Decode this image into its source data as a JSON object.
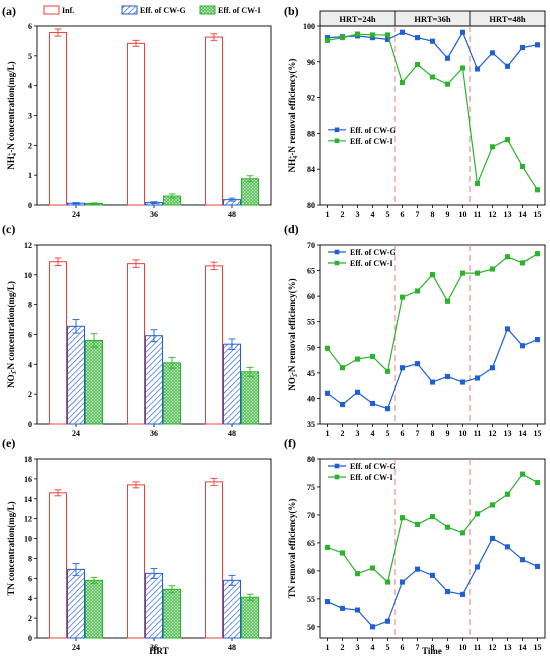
{
  "figure": {
    "bottom_xlabels": {
      "left": "HRT",
      "right": "Time"
    },
    "colors": {
      "inf": "#e8413a",
      "cwg": "#1f5fd6",
      "cwi": "#2bb32b",
      "marker_g": "#1f5fd6",
      "marker_i": "#2bb32b",
      "hrt_band": "#ededed",
      "divider": "#f08080"
    }
  },
  "chart_data": [
    {
      "id": "a",
      "type": "bar",
      "panel_label": "(a)",
      "categories": [
        "24",
        "36",
        "48"
      ],
      "ylabel": "NH4+-N concentration(mg/L)",
      "ylabel_parts": [
        "NH",
        "4",
        "+",
        "-N concentration(mg/L)"
      ],
      "ylim": [
        0,
        6
      ],
      "yticks": [
        0,
        1,
        2,
        3,
        4,
        5,
        6
      ],
      "legend_position": "top",
      "series": [
        {
          "name": "Inf.",
          "values": [
            5.78,
            5.42,
            5.63
          ],
          "errors": [
            0.12,
            0.1,
            0.11
          ]
        },
        {
          "name": "Eff. of CW-G",
          "values": [
            0.06,
            0.08,
            0.18
          ],
          "errors": [
            0.02,
            0.03,
            0.05
          ]
        },
        {
          "name": "Eff. of CW-I",
          "values": [
            0.05,
            0.3,
            0.88
          ],
          "errors": [
            0.02,
            0.07,
            0.1
          ]
        }
      ]
    },
    {
      "id": "b",
      "type": "line",
      "panel_label": "(b)",
      "x": [
        1,
        2,
        3,
        4,
        5,
        6,
        7,
        8,
        9,
        10,
        11,
        12,
        13,
        14,
        15
      ],
      "ylabel": "NH4+-N removal efficiency(%)",
      "ylabel_parts": [
        "NH",
        "4",
        "+",
        "-N removal efficiency(%)"
      ],
      "ylim": [
        80,
        100
      ],
      "yticks": [
        80,
        84,
        88,
        92,
        96,
        100
      ],
      "hrt_labels": [
        "HRT=24h",
        "HRT=36h",
        "HRT=48h"
      ],
      "legend_position": "bottom-left",
      "series": [
        {
          "name": "Eff. of CW-G",
          "values": [
            98.7,
            98.8,
            98.9,
            98.7,
            98.5,
            99.3,
            98.7,
            98.3,
            96.4,
            99.3,
            95.2,
            97.0,
            95.5,
            97.6,
            97.9
          ]
        },
        {
          "name": "Eff. of CW-I",
          "values": [
            98.4,
            98.7,
            99.1,
            99.0,
            99.0,
            93.7,
            95.7,
            94.3,
            93.5,
            95.3,
            82.4,
            86.5,
            87.3,
            84.3,
            81.7
          ]
        }
      ]
    },
    {
      "id": "c",
      "type": "bar",
      "panel_label": "(c)",
      "categories": [
        "24",
        "36",
        "48"
      ],
      "ylabel": "NO3--N concentration(mg/L)",
      "ylabel_parts": [
        "NO",
        "3",
        "-",
        "-N concentration(mg/L)"
      ],
      "ylim": [
        0,
        12
      ],
      "yticks": [
        0,
        2,
        4,
        6,
        8,
        10,
        12
      ],
      "series": [
        {
          "name": "Inf.",
          "values": [
            10.88,
            10.75,
            10.6
          ],
          "errors": [
            0.25,
            0.25,
            0.25
          ]
        },
        {
          "name": "Eff. of CW-G",
          "values": [
            6.55,
            5.92,
            5.35
          ],
          "errors": [
            0.45,
            0.4,
            0.35
          ]
        },
        {
          "name": "Eff. of CW-I",
          "values": [
            5.6,
            4.1,
            3.5
          ],
          "errors": [
            0.45,
            0.35,
            0.3
          ]
        }
      ]
    },
    {
      "id": "d",
      "type": "line",
      "panel_label": "(d)",
      "x": [
        1,
        2,
        3,
        4,
        5,
        6,
        7,
        8,
        9,
        10,
        11,
        12,
        13,
        14,
        15
      ],
      "ylabel": "NO3--N removal efficiency(%)",
      "ylabel_parts": [
        "NO",
        "3",
        "-",
        "-N removal efficiency(%)"
      ],
      "ylim": [
        35,
        70
      ],
      "yticks": [
        35,
        40,
        45,
        50,
        55,
        60,
        65,
        70
      ],
      "legend_position": "top-left",
      "series": [
        {
          "name": "Eff. of CW-G",
          "values": [
            41.0,
            38.8,
            41.2,
            39.0,
            38.0,
            46.0,
            46.8,
            43.2,
            44.3,
            43.2,
            44.0,
            46.0,
            53.6,
            50.3,
            51.5
          ]
        },
        {
          "name": "Eff. of CW-I",
          "values": [
            49.8,
            46.0,
            47.7,
            48.2,
            45.3,
            59.8,
            61.0,
            64.2,
            59.0,
            64.5,
            64.5,
            65.3,
            67.7,
            66.5,
            68.3
          ]
        }
      ]
    },
    {
      "id": "e",
      "type": "bar",
      "panel_label": "(e)",
      "categories": [
        "24",
        "36",
        "48"
      ],
      "ylabel": "TN concentration(mg/L)",
      "ylabel_parts": [
        "TN concentration(mg/L)",
        "",
        "",
        ""
      ],
      "xlabel": "HRT",
      "ylim": [
        0,
        18
      ],
      "yticks": [
        0,
        2,
        4,
        6,
        8,
        10,
        12,
        14,
        16,
        18
      ],
      "series": [
        {
          "name": "Inf.",
          "values": [
            14.6,
            15.4,
            15.7
          ],
          "errors": [
            0.3,
            0.3,
            0.35
          ]
        },
        {
          "name": "Eff. of CW-G",
          "values": [
            6.9,
            6.5,
            5.8
          ],
          "errors": [
            0.6,
            0.5,
            0.5
          ]
        },
        {
          "name": "Eff. of CW-I",
          "values": [
            5.8,
            4.9,
            4.1
          ],
          "errors": [
            0.3,
            0.35,
            0.3
          ]
        }
      ]
    },
    {
      "id": "f",
      "type": "line",
      "panel_label": "(f)",
      "x": [
        1,
        2,
        3,
        4,
        5,
        6,
        7,
        8,
        9,
        10,
        11,
        12,
        13,
        14,
        15
      ],
      "ylabel": "TN removal efficiency(%)",
      "ylabel_parts": [
        "TN removal efficiency(%)",
        "",
        "",
        ""
      ],
      "xlabel": "Time",
      "ylim": [
        48,
        80
      ],
      "yticks": [
        50,
        55,
        60,
        65,
        70,
        75,
        80
      ],
      "legend_position": "top-left",
      "series": [
        {
          "name": "Eff. of CW-G",
          "values": [
            54.5,
            53.3,
            53.0,
            50.0,
            51.0,
            58.0,
            60.3,
            59.2,
            56.3,
            55.8,
            60.7,
            65.8,
            64.3,
            62.0,
            60.8
          ]
        },
        {
          "name": "Eff. of CW-I",
          "values": [
            64.2,
            63.2,
            59.5,
            60.5,
            58.0,
            69.5,
            68.3,
            69.7,
            67.8,
            66.8,
            70.2,
            71.8,
            73.7,
            77.3,
            75.8
          ]
        }
      ]
    }
  ]
}
